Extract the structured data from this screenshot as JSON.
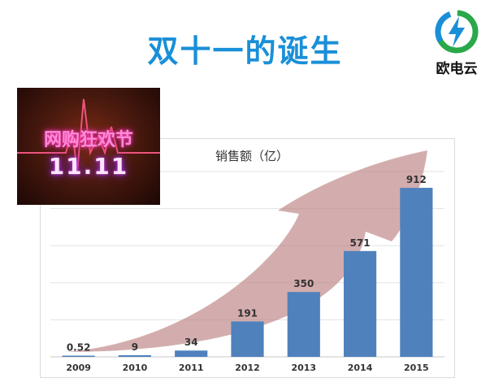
{
  "slide": {
    "title": "双十一的诞生"
  },
  "logo": {
    "text": "欧电云",
    "accent": "#2aa84a",
    "accent2": "#1a8fd8",
    "icon": "lightning-bolt-icon"
  },
  "promo_image": {
    "text": "网购狂欢节",
    "number": "11.11"
  },
  "colors": {
    "title": "#1a8fd8",
    "bar": "#4f81bd",
    "arrow": "#c98a8c"
  },
  "chart_data": {
    "type": "bar",
    "title": "销售额（亿）",
    "categories": [
      "2009",
      "2010",
      "2011",
      "2012",
      "2013",
      "2014",
      "2015"
    ],
    "values": [
      0.52,
      9,
      34,
      191,
      350,
      571,
      912
    ],
    "value_labels": [
      "0.52",
      "9",
      "34",
      "191",
      "350",
      "571",
      "912"
    ],
    "ylim": [
      0,
      1000
    ],
    "grid": true,
    "legend": "none",
    "annotation": "upward-arrow"
  }
}
